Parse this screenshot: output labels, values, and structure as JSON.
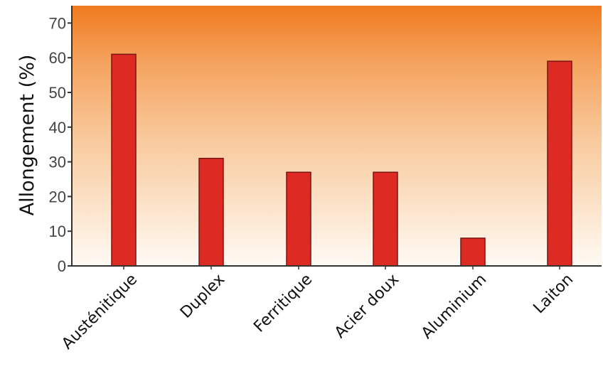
{
  "chart_data": {
    "type": "bar",
    "categories": [
      "Austénitique",
      "Duplex",
      "Ferritique",
      "Acier doux",
      "Aluminium",
      "Laiton"
    ],
    "values": [
      61,
      31,
      27,
      27,
      8,
      59
    ],
    "ylabel": "Allongement (%)",
    "xlabel": "",
    "ylim": [
      0,
      75
    ],
    "yticks": [
      0,
      10,
      20,
      30,
      40,
      50,
      60,
      70
    ],
    "grid": false,
    "legend": "none",
    "colors": {
      "bar_fill": "#dd2a22",
      "bar_stroke": "#7a1512",
      "background_top": "#f07a1e",
      "background_bottom": "#fffaf4",
      "axis": "#333333"
    }
  }
}
